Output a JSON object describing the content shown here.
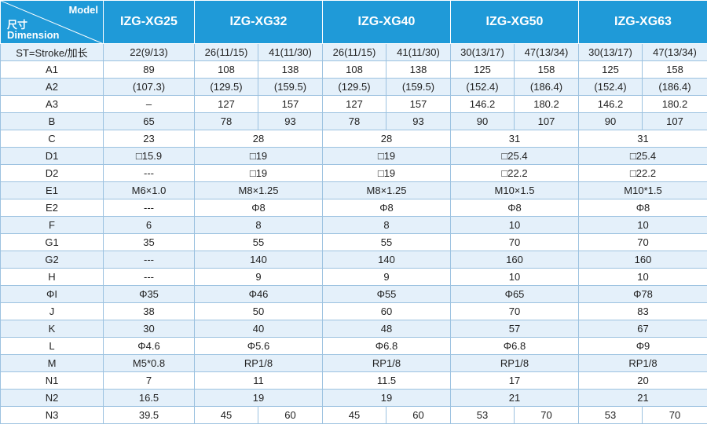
{
  "table": {
    "header": {
      "corner": {
        "model": "Model",
        "dimension_cn": "尺寸",
        "dimension": "Dimension"
      },
      "models": [
        "IZG-XG25",
        "IZG-XG32",
        "IZG-XG40",
        "IZG-XG50",
        "IZG-XG63"
      ]
    },
    "rows": [
      [
        "ST=Stroke/加长",
        "22(9/13)",
        "26(11/15)",
        "41(11/30)",
        "26(11/15)",
        "41(11/30)",
        "30(13/17)",
        "47(13/34)",
        "30(13/17)",
        "47(13/34)"
      ],
      [
        "A1",
        "89",
        "108",
        "138",
        "108",
        "138",
        "125",
        "158",
        "125",
        "158"
      ],
      [
        "A2",
        "(107.3)",
        "(129.5)",
        "(159.5)",
        "(129.5)",
        "(159.5)",
        "(152.4)",
        "(186.4)",
        "(152.4)",
        "(186.4)"
      ],
      [
        "A3",
        "–",
        "127",
        "157",
        "127",
        "157",
        "146.2",
        "180.2",
        "146.2",
        "180.2"
      ],
      [
        "B",
        "65",
        "78",
        "93",
        "78",
        "93",
        "90",
        "107",
        "90",
        "107"
      ],
      [
        "C",
        "23",
        "28",
        "28",
        "31",
        "31"
      ],
      [
        "D1",
        "□15.9",
        "□19",
        "□19",
        "□25.4",
        "□25.4"
      ],
      [
        "D2",
        "---",
        "□19",
        "□19",
        "□22.2",
        "□22.2"
      ],
      [
        "E1",
        "M6×1.0",
        "M8×1.25",
        "M8×1.25",
        "M10×1.5",
        "M10*1.5"
      ],
      [
        "E2",
        "---",
        "Φ8",
        "Φ8",
        "Φ8",
        "Φ8"
      ],
      [
        "F",
        "6",
        "8",
        "8",
        "10",
        "10"
      ],
      [
        "G1",
        "35",
        "55",
        "55",
        "70",
        "70"
      ],
      [
        "G2",
        "---",
        "140",
        "140",
        "160",
        "160"
      ],
      [
        "H",
        "---",
        "9",
        "9",
        "10",
        "10"
      ],
      [
        "ΦI",
        "Φ35",
        "Φ46",
        "Φ55",
        "Φ65",
        "Φ78"
      ],
      [
        "J",
        "38",
        "50",
        "60",
        "70",
        "83"
      ],
      [
        "K",
        "30",
        "40",
        "48",
        "57",
        "67"
      ],
      [
        "L",
        "Φ4.6",
        "Φ5.6",
        "Φ6.8",
        "Φ6.8",
        "Φ9"
      ],
      [
        "M",
        "M5*0.8",
        "RP1/8",
        "RP1/8",
        "RP1/8",
        "RP1/8"
      ],
      [
        "N1",
        "7",
        "11",
        "11.5",
        "17",
        "20"
      ],
      [
        "N2",
        "16.5",
        "19",
        "19",
        "21",
        "21"
      ],
      [
        "N3",
        "39.5",
        "45",
        "60",
        "45",
        "60",
        "53",
        "70",
        "53",
        "70"
      ]
    ]
  }
}
